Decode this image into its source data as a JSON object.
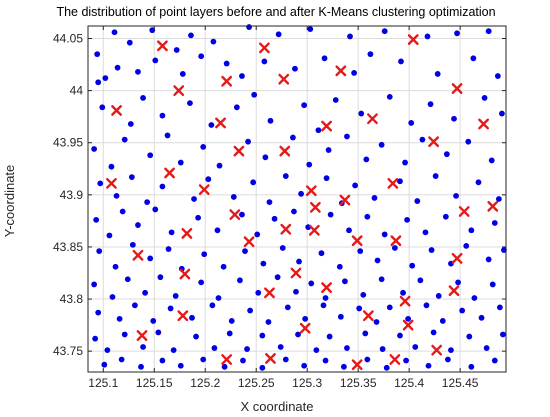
{
  "chart_data": {
    "type": "scatter",
    "title": "The distribution of point layers before and after K-Means clustering optimization",
    "xlabel": "X coordinate",
    "ylabel": "Y-coordinate",
    "xlim": [
      125.085,
      125.495
    ],
    "ylim": [
      43.73,
      44.062
    ],
    "xticks": [
      125.1,
      125.15,
      125.2,
      125.25,
      125.3,
      125.35,
      125.4,
      125.45
    ],
    "xtick_labels": [
      "125.1",
      "125.15",
      "125.2",
      "125.25",
      "125.3",
      "125.35",
      "125.4",
      "125.45"
    ],
    "yticks": [
      43.75,
      43.8,
      43.85,
      43.9,
      43.95,
      44,
      44.05
    ],
    "ytick_labels": [
      "43.75",
      "43.8",
      "43.85",
      "43.9",
      "43.95",
      "44",
      "44.05"
    ],
    "grid": true,
    "legend": "none",
    "colors": {
      "points": "#0000e6",
      "centers": "#e61919",
      "grid": "#dcdcdc",
      "axis": "#262626"
    },
    "series": [
      {
        "marker": "dot",
        "color": "#0000e6",
        "points": [
          [
            125.094,
            44.035
          ],
          [
            125.102,
            44.012
          ],
          [
            125.111,
            44.056
          ],
          [
            125.126,
            44.046
          ],
          [
            125.148,
            44.058
          ],
          [
            125.172,
            44.039
          ],
          [
            125.186,
            44.053
          ],
          [
            125.208,
            44.047
          ],
          [
            125.243,
            44.061
          ],
          [
            125.272,
            44.054
          ],
          [
            125.303,
            44.059
          ],
          [
            125.342,
            44.052
          ],
          [
            125.376,
            44.057
          ],
          [
            125.418,
            44.052
          ],
          [
            125.447,
            44.055
          ],
          [
            125.478,
            44.057
          ],
          [
            125.095,
            44.008
          ],
          [
            125.114,
            44.022
          ],
          [
            125.134,
            44.018
          ],
          [
            125.151,
            44.029
          ],
          [
            125.178,
            44.016
          ],
          [
            125.196,
            44.033
          ],
          [
            125.221,
            44.026
          ],
          [
            125.236,
            44.014
          ],
          [
            125.258,
            44.028
          ],
          [
            125.288,
            44.021
          ],
          [
            125.317,
            44.031
          ],
          [
            125.346,
            44.017
          ],
          [
            125.362,
            44.035
          ],
          [
            125.392,
            44.028
          ],
          [
            125.428,
            44.016
          ],
          [
            125.463,
            44.031
          ],
          [
            125.487,
            44.014
          ],
          [
            125.099,
            43.984
          ],
          [
            125.127,
            43.968
          ],
          [
            125.139,
            43.993
          ],
          [
            125.158,
            43.976
          ],
          [
            125.185,
            43.988
          ],
          [
            125.206,
            43.967
          ],
          [
            125.231,
            43.984
          ],
          [
            125.248,
            43.996
          ],
          [
            125.264,
            43.971
          ],
          [
            125.297,
            43.986
          ],
          [
            125.311,
            43.962
          ],
          [
            125.328,
            43.991
          ],
          [
            125.353,
            43.978
          ],
          [
            125.381,
            43.994
          ],
          [
            125.402,
            43.969
          ],
          [
            125.421,
            43.987
          ],
          [
            125.444,
            43.973
          ],
          [
            125.474,
            43.993
          ],
          [
            125.491,
            43.978
          ],
          [
            125.091,
            43.944
          ],
          [
            125.108,
            43.927
          ],
          [
            125.121,
            43.953
          ],
          [
            125.146,
            43.938
          ],
          [
            125.163,
            43.957
          ],
          [
            125.176,
            43.931
          ],
          [
            125.198,
            43.946
          ],
          [
            125.214,
            43.928
          ],
          [
            125.242,
            43.951
          ],
          [
            125.259,
            43.936
          ],
          [
            125.286,
            43.955
          ],
          [
            125.302,
            43.929
          ],
          [
            125.321,
            43.943
          ],
          [
            125.339,
            43.956
          ],
          [
            125.358,
            43.934
          ],
          [
            125.373,
            43.948
          ],
          [
            125.396,
            43.931
          ],
          [
            125.413,
            43.953
          ],
          [
            125.437,
            43.939
          ],
          [
            125.458,
            43.951
          ],
          [
            125.481,
            43.933
          ],
          [
            125.097,
            43.911
          ],
          [
            125.113,
            43.899
          ],
          [
            125.128,
            43.917
          ],
          [
            125.143,
            43.893
          ],
          [
            125.158,
            43.908
          ],
          [
            125.189,
            43.896
          ],
          [
            125.203,
            43.915
          ],
          [
            125.228,
            43.898
          ],
          [
            125.247,
            43.912
          ],
          [
            125.263,
            43.893
          ],
          [
            125.279,
            43.918
          ],
          [
            125.294,
            43.901
          ],
          [
            125.319,
            43.916
          ],
          [
            125.334,
            43.892
          ],
          [
            125.347,
            43.909
          ],
          [
            125.366,
            43.897
          ],
          [
            125.391,
            43.913
          ],
          [
            125.408,
            43.894
          ],
          [
            125.426,
            43.918
          ],
          [
            125.446,
            43.899
          ],
          [
            125.468,
            43.912
          ],
          [
            125.488,
            43.896
          ],
          [
            125.093,
            43.876
          ],
          [
            125.106,
            43.861
          ],
          [
            125.119,
            43.884
          ],
          [
            125.134,
            43.871
          ],
          [
            125.151,
            43.886
          ],
          [
            125.167,
            43.864
          ],
          [
            125.193,
            43.878
          ],
          [
            125.212,
            43.866
          ],
          [
            125.236,
            43.881
          ],
          [
            125.251,
            43.862
          ],
          [
            125.268,
            43.877
          ],
          [
            125.287,
            43.884
          ],
          [
            125.301,
            43.869
          ],
          [
            125.323,
            43.881
          ],
          [
            125.341,
            43.866
          ],
          [
            125.359,
            43.879
          ],
          [
            125.376,
            43.862
          ],
          [
            125.398,
            43.876
          ],
          [
            125.416,
            43.864
          ],
          [
            125.436,
            43.879
          ],
          [
            125.461,
            43.866
          ],
          [
            125.484,
            43.873
          ],
          [
            125.096,
            43.846
          ],
          [
            125.112,
            43.831
          ],
          [
            125.129,
            43.852
          ],
          [
            125.146,
            43.839
          ],
          [
            125.164,
            43.848
          ],
          [
            125.177,
            43.829
          ],
          [
            125.199,
            43.843
          ],
          [
            125.218,
            43.831
          ],
          [
            125.239,
            43.846
          ],
          [
            125.257,
            43.834
          ],
          [
            125.276,
            43.849
          ],
          [
            125.292,
            43.836
          ],
          [
            125.314,
            43.844
          ],
          [
            125.332,
            43.831
          ],
          [
            125.352,
            43.846
          ],
          [
            125.369,
            43.837
          ],
          [
            125.386,
            43.849
          ],
          [
            125.403,
            43.832
          ],
          [
            125.422,
            43.847
          ],
          [
            125.441,
            43.834
          ],
          [
            125.456,
            43.851
          ],
          [
            125.478,
            43.838
          ],
          [
            125.493,
            43.847
          ],
          [
            125.091,
            43.814
          ],
          [
            125.109,
            43.802
          ],
          [
            125.124,
            43.819
          ],
          [
            125.141,
            43.806
          ],
          [
            125.156,
            43.821
          ],
          [
            125.171,
            43.803
          ],
          [
            125.196,
            43.816
          ],
          [
            125.213,
            43.801
          ],
          [
            125.234,
            43.818
          ],
          [
            125.252,
            43.806
          ],
          [
            125.271,
            43.821
          ],
          [
            125.289,
            43.807
          ],
          [
            125.304,
            43.815
          ],
          [
            125.318,
            43.801
          ],
          [
            125.337,
            43.817
          ],
          [
            125.355,
            43.804
          ],
          [
            125.373,
            43.819
          ],
          [
            125.394,
            43.806
          ],
          [
            125.411,
            43.818
          ],
          [
            125.429,
            43.803
          ],
          [
            125.448,
            43.816
          ],
          [
            125.464,
            43.801
          ],
          [
            125.482,
            43.814
          ],
          [
            125.095,
            43.787
          ],
          [
            125.116,
            43.781
          ],
          [
            125.131,
            43.794
          ],
          [
            125.149,
            43.779
          ],
          [
            125.166,
            43.791
          ],
          [
            125.187,
            43.782
          ],
          [
            125.207,
            43.794
          ],
          [
            125.226,
            43.779
          ],
          [
            125.244,
            43.789
          ],
          [
            125.262,
            43.778
          ],
          [
            125.281,
            43.792
          ],
          [
            125.298,
            43.781
          ],
          [
            125.316,
            43.794
          ],
          [
            125.333,
            43.783
          ],
          [
            125.351,
            43.791
          ],
          [
            125.368,
            43.778
          ],
          [
            125.381,
            43.792
          ],
          [
            125.399,
            43.781
          ],
          [
            125.417,
            43.794
          ],
          [
            125.433,
            43.779
          ],
          [
            125.452,
            43.789
          ],
          [
            125.471,
            43.782
          ],
          [
            125.489,
            43.792
          ],
          [
            125.092,
            43.762
          ],
          [
            125.104,
            43.751
          ],
          [
            125.121,
            43.766
          ],
          [
            125.139,
            43.754
          ],
          [
            125.154,
            43.768
          ],
          [
            125.169,
            43.751
          ],
          [
            125.191,
            43.764
          ],
          [
            125.209,
            43.753
          ],
          [
            125.224,
            43.767
          ],
          [
            125.241,
            43.752
          ],
          [
            125.256,
            43.765
          ],
          [
            125.274,
            43.754
          ],
          [
            125.291,
            43.766
          ],
          [
            125.309,
            43.751
          ],
          [
            125.322,
            43.764
          ],
          [
            125.339,
            43.753
          ],
          [
            125.357,
            43.767
          ],
          [
            125.374,
            43.752
          ],
          [
            125.391,
            43.765
          ],
          [
            125.406,
            43.754
          ],
          [
            125.424,
            43.768
          ],
          [
            125.441,
            43.751
          ],
          [
            125.459,
            43.764
          ],
          [
            125.476,
            43.753
          ],
          [
            125.492,
            43.766
          ],
          [
            125.101,
            43.737
          ],
          [
            125.118,
            43.742
          ],
          [
            125.137,
            43.735
          ],
          [
            125.158,
            43.741
          ],
          [
            125.176,
            43.736
          ],
          [
            125.198,
            43.742
          ],
          [
            125.219,
            43.735
          ],
          [
            125.237,
            43.741
          ],
          [
            125.256,
            43.734
          ],
          [
            125.279,
            43.742
          ],
          [
            125.297,
            43.736
          ],
          [
            125.318,
            43.741
          ],
          [
            125.336,
            43.735
          ],
          [
            125.359,
            43.742
          ],
          [
            125.378,
            43.734
          ],
          [
            125.397,
            43.741
          ],
          [
            125.419,
            43.736
          ],
          [
            125.438,
            43.742
          ],
          [
            125.461,
            43.735
          ],
          [
            125.484,
            43.741
          ]
        ]
      },
      {
        "marker": "x",
        "color": "#e61919",
        "points": [
          [
            125.158,
            44.043
          ],
          [
            125.258,
            44.041
          ],
          [
            125.333,
            44.019
          ],
          [
            125.404,
            44.049
          ],
          [
            125.221,
            44.009
          ],
          [
            125.277,
            44.011
          ],
          [
            125.174,
            44.0
          ],
          [
            125.447,
            44.002
          ],
          [
            125.113,
            43.981
          ],
          [
            125.364,
            43.973
          ],
          [
            125.215,
            43.969
          ],
          [
            125.319,
            43.966
          ],
          [
            125.473,
            43.968
          ],
          [
            125.233,
            43.942
          ],
          [
            125.278,
            43.942
          ],
          [
            125.424,
            43.951
          ],
          [
            125.165,
            43.921
          ],
          [
            125.108,
            43.911
          ],
          [
            125.199,
            43.905
          ],
          [
            125.304,
            43.904
          ],
          [
            125.384,
            43.911
          ],
          [
            125.308,
            43.888
          ],
          [
            125.337,
            43.895
          ],
          [
            125.454,
            43.884
          ],
          [
            125.482,
            43.889
          ],
          [
            125.229,
            43.881
          ],
          [
            125.182,
            43.863
          ],
          [
            125.279,
            43.867
          ],
          [
            125.307,
            43.866
          ],
          [
            125.349,
            43.856
          ],
          [
            125.387,
            43.856
          ],
          [
            125.134,
            43.842
          ],
          [
            125.243,
            43.855
          ],
          [
            125.447,
            43.839
          ],
          [
            125.18,
            43.824
          ],
          [
            125.289,
            43.825
          ],
          [
            125.319,
            43.811
          ],
          [
            125.444,
            43.808
          ],
          [
            125.263,
            43.806
          ],
          [
            125.396,
            43.798
          ],
          [
            125.178,
            43.784
          ],
          [
            125.36,
            43.784
          ],
          [
            125.138,
            43.765
          ],
          [
            125.298,
            43.772
          ],
          [
            125.399,
            43.775
          ],
          [
            125.427,
            43.751
          ],
          [
            125.221,
            43.742
          ],
          [
            125.264,
            43.743
          ],
          [
            125.349,
            43.737
          ],
          [
            125.386,
            43.742
          ]
        ]
      }
    ]
  }
}
